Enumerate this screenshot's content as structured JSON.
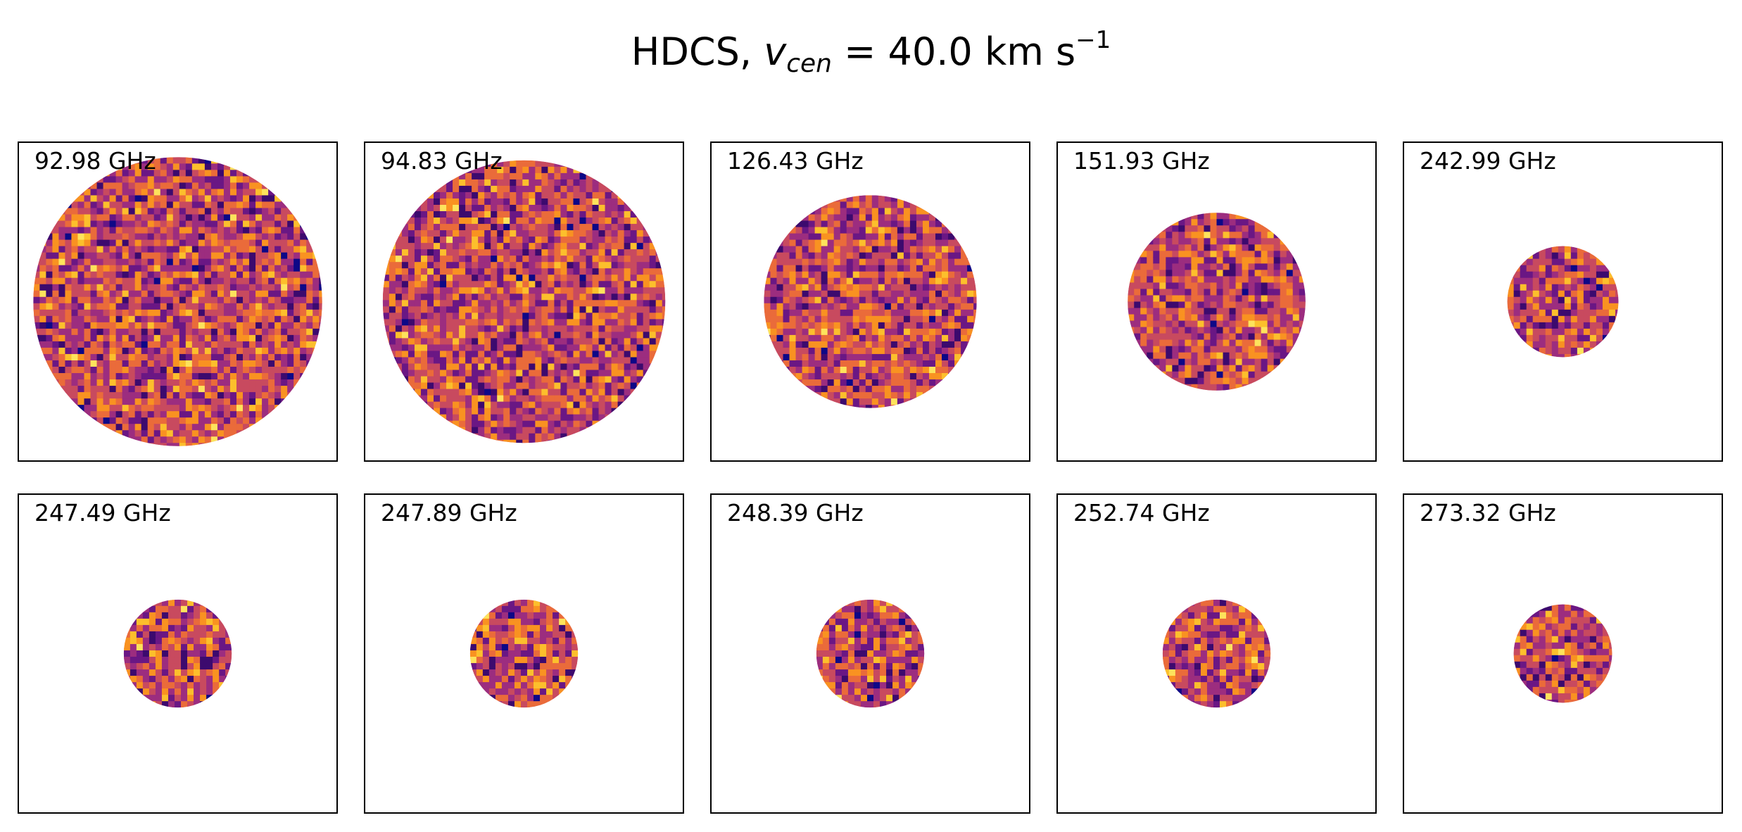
{
  "title": {
    "prefix": "HDCS, ",
    "var": "v",
    "sub": "cen",
    "eq": " = ",
    "value": " 40.0 km s",
    "sup": "−1"
  },
  "colormap": [
    "#0d0887",
    "#3c0a6e",
    "#6a1784",
    "#9c2d7f",
    "#c84a5f",
    "#ea6b3a",
    "#f99221",
    "#fcbf2c",
    "#fde35c"
  ],
  "panels": [
    {
      "label": "92.98 GHz",
      "radius_fraction": 0.91
    },
    {
      "label": "94.83 GHz",
      "radius_fraction": 0.89
    },
    {
      "label": "126.43 GHz",
      "radius_fraction": 0.67
    },
    {
      "label": "151.93 GHz",
      "radius_fraction": 0.56
    },
    {
      "label": "242.99 GHz",
      "radius_fraction": 0.35
    },
    {
      "label": "247.49 GHz",
      "radius_fraction": 0.34
    },
    {
      "label": "247.89 GHz",
      "radius_fraction": 0.34
    },
    {
      "label": "248.39 GHz",
      "radius_fraction": 0.34
    },
    {
      "label": "252.74 GHz",
      "radius_fraction": 0.34
    },
    {
      "label": "273.32 GHz",
      "radius_fraction": 0.31
    }
  ]
}
